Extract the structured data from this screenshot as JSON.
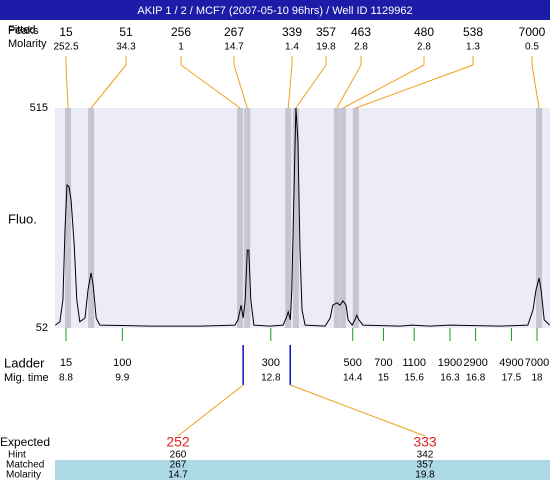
{
  "chart_data": {
    "type": "electropherogram",
    "title": "AKIP 1 / 2 / MCF7 (2007-05-10 96hrs) / Well ID 1129962",
    "y_label": "Fluo.",
    "ylim": [
      52,
      515
    ],
    "yticks": [
      52,
      515
    ],
    "xlim": [
      8.585,
      18.253
    ],
    "trace": {
      "x": [
        8.59,
        8.68,
        8.74,
        8.78,
        8.82,
        8.86,
        8.9,
        8.96,
        9.01,
        9.07,
        9.17,
        9.23,
        9.29,
        9.33,
        9.39,
        9.46,
        10.44,
        11.42,
        12.1,
        12.16,
        12.22,
        12.26,
        12.3,
        12.34,
        12.37,
        12.41,
        12.47,
        12.78,
        13.04,
        13.1,
        13.14,
        13.18,
        13.21,
        13.25,
        13.29,
        13.33,
        13.37,
        13.41,
        13.47,
        13.86,
        13.96,
        14.01,
        14.09,
        14.15,
        14.21,
        14.27,
        14.31,
        14.39,
        14.44,
        14.48,
        14.52,
        14.6,
        15.32,
        15.56,
        15.91,
        16.3,
        17.28,
        17.82,
        17.92,
        17.98,
        18.04,
        18.08,
        18.14,
        18.25
      ],
      "y": [
        58,
        65,
        111,
        258,
        353,
        349,
        321,
        227,
        111,
        65,
        73,
        132,
        168,
        143,
        73,
        58,
        56,
        56,
        58,
        69,
        100,
        73,
        111,
        216,
        216,
        111,
        58,
        56,
        58,
        73,
        86,
        69,
        132,
        321,
        515,
        448,
        216,
        90,
        58,
        56,
        73,
        100,
        105,
        100,
        109,
        100,
        69,
        58,
        69,
        79,
        69,
        58,
        56,
        58,
        56,
        58,
        56,
        58,
        90,
        132,
        157,
        132,
        69,
        58
      ]
    },
    "row_labels": {
      "fitted": "Fitted",
      "peaks": "Peaks",
      "molarity": "Molarity",
      "ladder": "Ladder",
      "mig_time": "Mig. time",
      "expected": "Expected",
      "hint": "Hint",
      "matched": "Matched",
      "expected_molarity": "Molarity"
    },
    "peaks": {
      "size": [
        15,
        51,
        256,
        267,
        339,
        357,
        463,
        480,
        538,
        7000
      ],
      "molarity": [
        252.5,
        34.3,
        1,
        14.7,
        1.4,
        19.8,
        2.8,
        2.8,
        1.3,
        0.5
      ],
      "time": [
        8.84,
        9.29,
        12.2,
        12.34,
        13.14,
        13.29,
        14.09,
        14.21,
        14.46,
        18.04
      ]
    },
    "ladder": {
      "size": [
        15,
        100,
        300,
        500,
        700,
        1100,
        1900,
        2900,
        4900,
        7000
      ],
      "time": [
        8.8,
        9.9,
        12.8,
        14.4,
        15,
        15.6,
        16.3,
        16.8,
        17.5,
        18
      ]
    },
    "expected": {
      "size": [
        252,
        333
      ],
      "time": [
        12.26,
        13.18
      ],
      "hint": [
        260,
        342
      ],
      "matched": [
        267,
        357
      ],
      "molarity": [
        14.7,
        19.8
      ]
    }
  }
}
